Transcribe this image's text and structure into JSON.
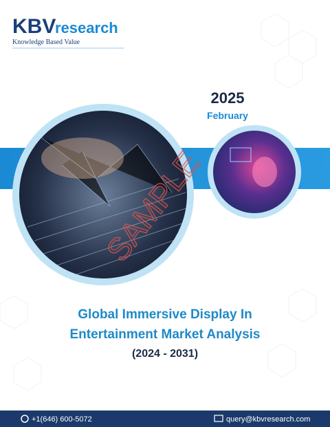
{
  "brand": {
    "logo_prefix": "KBV",
    "logo_suffix": "research",
    "tagline": "Knowledge Based Value"
  },
  "date": {
    "year": "2025",
    "month": "February"
  },
  "watermark": "SAMPLE",
  "title": {
    "line1": "Global Immersive Display In",
    "line2": "Entertainment Market Analysis",
    "period": "(2024 - 2031)"
  },
  "footer": {
    "phone": "+1(646) 600-5072",
    "email": "query@kbvresearch.com"
  }
}
